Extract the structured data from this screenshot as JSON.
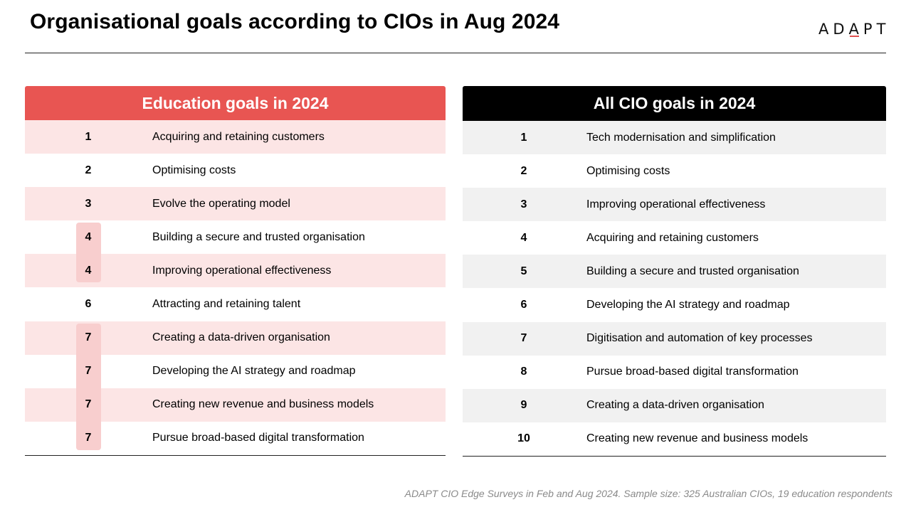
{
  "title": "Organisational goals according to CIOs in Aug 2024",
  "logo": {
    "left_text": "AD",
    "accent_text": "A",
    "right_text": "PT",
    "accent_color": "#e05050"
  },
  "education": {
    "header": "Education goals in 2024",
    "header_color": "#e85552",
    "rows": [
      {
        "rank": "1",
        "goal": "Acquiring and retaining customers"
      },
      {
        "rank": "2",
        "goal": "Optimising costs"
      },
      {
        "rank": "3",
        "goal": "Evolve the operating model"
      },
      {
        "rank": "4",
        "goal": "Building a secure and trusted organisation"
      },
      {
        "rank": "4",
        "goal": "Improving operational effectiveness"
      },
      {
        "rank": "6",
        "goal": "Attracting and retaining talent"
      },
      {
        "rank": "7",
        "goal": "Creating a data-driven organisation"
      },
      {
        "rank": "7",
        "goal": "Developing the AI strategy and roadmap"
      },
      {
        "rank": "7",
        "goal": "Creating new revenue and business models"
      },
      {
        "rank": "7",
        "goal": "Pursue broad-based digital transformation"
      }
    ]
  },
  "all_cio": {
    "header": "All CIO goals in 2024",
    "header_color": "#000000",
    "rows": [
      {
        "rank": "1",
        "goal": "Tech modernisation and simplification"
      },
      {
        "rank": "2",
        "goal": "Optimising costs"
      },
      {
        "rank": "3",
        "goal": "Improving operational effectiveness"
      },
      {
        "rank": "4",
        "goal": "Acquiring and retaining customers"
      },
      {
        "rank": "5",
        "goal": "Building a secure and trusted organisation"
      },
      {
        "rank": "6",
        "goal": "Developing the AI strategy and roadmap"
      },
      {
        "rank": "7",
        "goal": "Digitisation and automation of key processes"
      },
      {
        "rank": "8",
        "goal": "Pursue broad-based digital transformation"
      },
      {
        "rank": "9",
        "goal": "Creating a data-driven organisation"
      },
      {
        "rank": "10",
        "goal": "Creating new revenue and business models"
      }
    ]
  },
  "footer": "ADAPT CIO Edge Surveys in Feb and Aug 2024. Sample size: 325 Australian CIOs, 19 education respondents"
}
